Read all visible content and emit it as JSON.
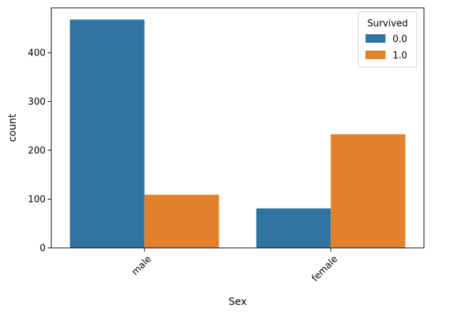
{
  "chart_data": {
    "type": "bar",
    "categories": [
      "male",
      "female"
    ],
    "series": [
      {
        "name": "0.0",
        "values": [
          468,
          81
        ],
        "color": "#3274a1"
      },
      {
        "name": "1.0",
        "values": [
          109,
          233
        ],
        "color": "#e1812c"
      }
    ],
    "xlabel": "Sex",
    "ylabel": "count",
    "ylim": [
      0,
      492
    ],
    "yticks": [
      0,
      100,
      200,
      300,
      400
    ],
    "legend": {
      "title": "Survived",
      "position": "top-right"
    },
    "xtick_rotation": 45,
    "grid": false
  }
}
